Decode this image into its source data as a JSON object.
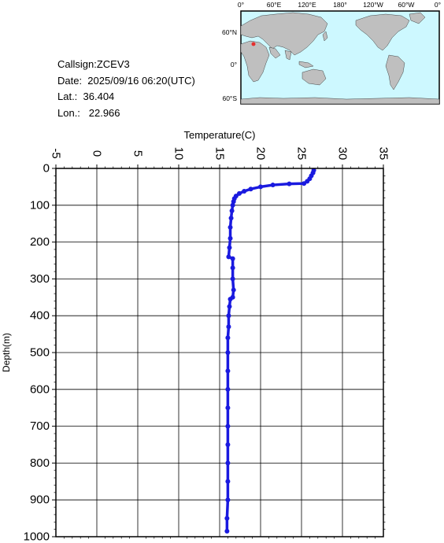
{
  "info": {
    "callsign": "Callsign:ZCEV3",
    "date": "Date:  2025/09/16 06:20(UTC)",
    "lat": "Lat.:  36.404",
    "lon": "Lon.:   22.966"
  },
  "map": {
    "lon_labels": [
      "0°",
      "60°E",
      "120°E",
      "180°",
      "120°W",
      "60°W",
      "0°"
    ],
    "lat_labels": [
      "60°N",
      "0°",
      "60°S"
    ],
    "colors": {
      "ocean": "#cdf8ff",
      "land": "#bfbfbf",
      "marker": "#e53030"
    }
  },
  "chart_data": {
    "type": "line",
    "xlabel": "Temperature(C)",
    "ylabel": "Depth(m)",
    "xlim": [
      -5,
      35
    ],
    "ylim": [
      0,
      1000
    ],
    "y_inverted": true,
    "x_axis_position": "top",
    "grid": true,
    "x_ticks": [
      "-5",
      "0",
      "5",
      "10",
      "15",
      "20",
      "25",
      "30",
      "35"
    ],
    "y_ticks": [
      "0",
      "100",
      "200",
      "300",
      "400",
      "500",
      "600",
      "700",
      "800",
      "900",
      "1000"
    ],
    "series": [
      {
        "color": "#1a1adf",
        "points": [
          [
            26.5,
            5
          ],
          [
            26.4,
            12
          ],
          [
            26.2,
            20
          ],
          [
            26.0,
            28
          ],
          [
            25.7,
            35
          ],
          [
            25.3,
            41
          ],
          [
            23.5,
            42
          ],
          [
            21.5,
            45
          ],
          [
            20.0,
            50
          ],
          [
            18.8,
            56
          ],
          [
            18.0,
            62
          ],
          [
            17.4,
            68
          ],
          [
            17.0,
            75
          ],
          [
            16.8,
            82
          ],
          [
            16.7,
            90
          ],
          [
            16.6,
            100
          ],
          [
            16.5,
            115
          ],
          [
            16.4,
            135
          ],
          [
            16.3,
            160
          ],
          [
            16.3,
            190
          ],
          [
            16.2,
            215
          ],
          [
            16.1,
            240
          ],
          [
            16.6,
            245
          ],
          [
            16.6,
            270
          ],
          [
            16.6,
            300
          ],
          [
            16.7,
            330
          ],
          [
            16.6,
            350
          ],
          [
            16.3,
            355
          ],
          [
            16.2,
            375
          ],
          [
            16.1,
            400
          ],
          [
            16.1,
            430
          ],
          [
            16.0,
            460
          ],
          [
            16.0,
            500
          ],
          [
            16.0,
            550
          ],
          [
            16.0,
            600
          ],
          [
            16.0,
            650
          ],
          [
            16.0,
            700
          ],
          [
            16.0,
            750
          ],
          [
            16.0,
            800
          ],
          [
            16.0,
            850
          ],
          [
            16.0,
            900
          ],
          [
            15.9,
            950
          ],
          [
            15.9,
            985
          ]
        ]
      }
    ]
  }
}
